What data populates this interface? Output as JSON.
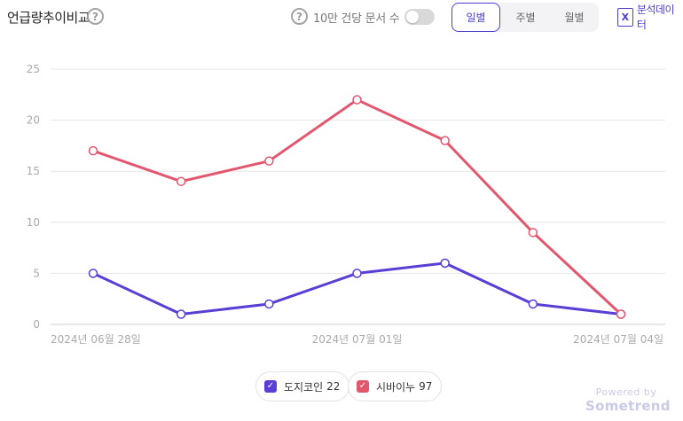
{
  "header": {
    "title": "언급량추이비교",
    "per_doc_label": "10만 건당 문서 수",
    "per_doc_enabled": false,
    "periods": [
      "일별",
      "주별",
      "월별"
    ],
    "active_period": "일별",
    "export_label": "분석데이터",
    "export_icon": "X"
  },
  "chart_data": {
    "type": "line",
    "x_tick_labels": [
      "2024년 06월 28일",
      "2024년 07월 01일",
      "2024년 07월 04일"
    ],
    "x_tick_positions": [
      0,
      3,
      6
    ],
    "x": [
      0,
      1,
      2,
      3,
      4,
      5,
      6
    ],
    "series": [
      {
        "name": "도지코인",
        "count": "22",
        "color": "#5a3ed6",
        "values": [
          5,
          1,
          2,
          5,
          6,
          2,
          1
        ]
      },
      {
        "name": "시바이누",
        "count": "97",
        "color": "#e2566e",
        "values": [
          17,
          14,
          16,
          22,
          18,
          9,
          1
        ]
      }
    ],
    "ylim": [
      0,
      25
    ],
    "yticks": [
      0,
      5,
      10,
      15,
      20,
      25
    ],
    "grid": true,
    "legend_position": "bottom"
  },
  "legend": {
    "check_glyph": "✓"
  },
  "footer": {
    "powered_by": "Powered by",
    "brand": "Sometrend"
  }
}
